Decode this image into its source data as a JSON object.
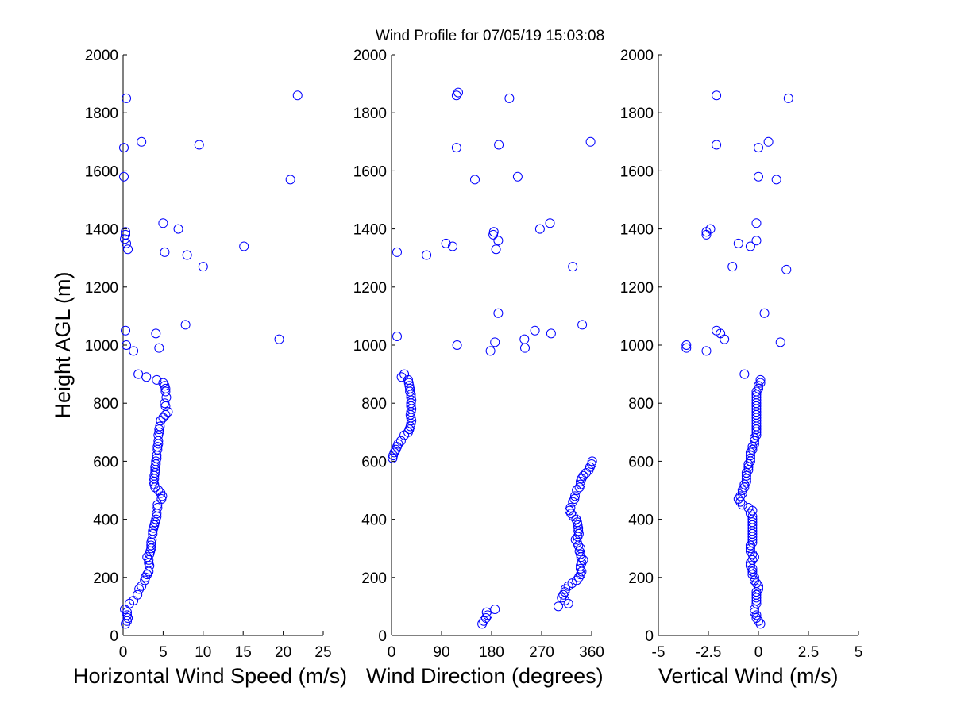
{
  "figure_title": "Wind Profile for  07/05/19 15:03:08",
  "colors": {
    "marker": "#0000ff",
    "axis": "#000000",
    "background": "#ffffff"
  },
  "chart_data": [
    {
      "type": "scatter",
      "marker": "open-circle",
      "xlabel": "Horizontal Wind Speed (m/s)",
      "ylabel": "Height AGL (m)",
      "xlim": [
        0,
        25
      ],
      "ylim": [
        0,
        2000
      ],
      "xticks": [
        "0",
        "5",
        "10",
        "15",
        "20",
        "25"
      ],
      "xtick_values": [
        0,
        5,
        10,
        15,
        20,
        25
      ],
      "yticks": [
        "0",
        "200",
        "400",
        "600",
        "800",
        "1000",
        "1200",
        "1400",
        "1600",
        "1800",
        "2000"
      ],
      "ytick_values": [
        0,
        200,
        400,
        600,
        800,
        1000,
        1200,
        1400,
        1600,
        1800,
        2000
      ],
      "grid": false,
      "points": [
        [
          0.3,
          40
        ],
        [
          0.5,
          50
        ],
        [
          0.6,
          60
        ],
        [
          0.5,
          70
        ],
        [
          0.5,
          80
        ],
        [
          0.2,
          90
        ],
        [
          0.8,
          110
        ],
        [
          1.3,
          120
        ],
        [
          1.8,
          140
        ],
        [
          2.0,
          160
        ],
        [
          2.3,
          170
        ],
        [
          2.7,
          190
        ],
        [
          2.8,
          200
        ],
        [
          3.0,
          210
        ],
        [
          3.2,
          220
        ],
        [
          3.3,
          240
        ],
        [
          3.2,
          250
        ],
        [
          3.2,
          260
        ],
        [
          3.0,
          270
        ],
        [
          3.3,
          280
        ],
        [
          3.4,
          290
        ],
        [
          3.5,
          300
        ],
        [
          3.5,
          310
        ],
        [
          3.5,
          320
        ],
        [
          3.6,
          330
        ],
        [
          3.7,
          350
        ],
        [
          3.7,
          360
        ],
        [
          3.8,
          370
        ],
        [
          3.9,
          380
        ],
        [
          4.0,
          390
        ],
        [
          4.1,
          400
        ],
        [
          4.2,
          410
        ],
        [
          4.2,
          420
        ],
        [
          4.3,
          440
        ],
        [
          4.3,
          450
        ],
        [
          4.8,
          470
        ],
        [
          4.9,
          480
        ],
        [
          4.7,
          490
        ],
        [
          4.4,
          500
        ],
        [
          4.0,
          510
        ],
        [
          3.9,
          520
        ],
        [
          3.8,
          530
        ],
        [
          3.9,
          540
        ],
        [
          3.9,
          550
        ],
        [
          4.0,
          560
        ],
        [
          4.0,
          570
        ],
        [
          4.0,
          580
        ],
        [
          4.1,
          590
        ],
        [
          4.1,
          600
        ],
        [
          4.2,
          610
        ],
        [
          4.2,
          620
        ],
        [
          4.3,
          640
        ],
        [
          4.3,
          650
        ],
        [
          4.4,
          660
        ],
        [
          4.4,
          670
        ],
        [
          4.4,
          690
        ],
        [
          4.5,
          700
        ],
        [
          4.5,
          710
        ],
        [
          4.6,
          720
        ],
        [
          4.7,
          740
        ],
        [
          5.0,
          750
        ],
        [
          5.3,
          760
        ],
        [
          5.6,
          770
        ],
        [
          5.3,
          790
        ],
        [
          5.2,
          800
        ],
        [
          5.4,
          820
        ],
        [
          5.3,
          840
        ],
        [
          5.3,
          850
        ],
        [
          5.2,
          860
        ],
        [
          5.0,
          870
        ],
        [
          4.2,
          880
        ],
        [
          2.9,
          890
        ],
        [
          1.9,
          900
        ],
        [
          1.3,
          980
        ],
        [
          4.5,
          990
        ],
        [
          0.4,
          1000
        ],
        [
          7.8,
          1070
        ],
        [
          19.5,
          1020
        ],
        [
          4.1,
          1040
        ],
        [
          0.3,
          1050
        ],
        [
          10.0,
          1270
        ],
        [
          5.2,
          1320
        ],
        [
          8.0,
          1310
        ],
        [
          0.6,
          1330
        ],
        [
          0.4,
          1350
        ],
        [
          0.2,
          1365
        ],
        [
          0.3,
          1380
        ],
        [
          0.3,
          1390
        ],
        [
          6.9,
          1400
        ],
        [
          5.0,
          1420
        ],
        [
          15.1,
          1340
        ],
        [
          0.1,
          1580
        ],
        [
          20.9,
          1570
        ],
        [
          0.1,
          1680
        ],
        [
          2.3,
          1700
        ],
        [
          9.5,
          1690
        ],
        [
          0.4,
          1850
        ],
        [
          21.8,
          1860
        ]
      ]
    },
    {
      "type": "scatter",
      "marker": "open-circle",
      "xlabel": "Wind Direction (degrees)",
      "ylabel": "",
      "xlim": [
        0,
        360
      ],
      "ylim": [
        0,
        2000
      ],
      "xticks": [
        "0",
        "90",
        "180",
        "270",
        "360"
      ],
      "xtick_values": [
        0,
        90,
        180,
        270,
        360
      ],
      "yticks": [
        "0",
        "200",
        "400",
        "600",
        "800",
        "1000",
        "1200",
        "1400",
        "1600",
        "1800",
        "2000"
      ],
      "ytick_values": [
        0,
        200,
        400,
        600,
        800,
        1000,
        1200,
        1400,
        1600,
        1800,
        2000
      ],
      "grid": false,
      "points": [
        [
          163,
          40
        ],
        [
          166,
          50
        ],
        [
          170,
          60
        ],
        [
          173,
          70
        ],
        [
          171,
          80
        ],
        [
          186,
          90
        ],
        [
          300,
          100
        ],
        [
          318,
          110
        ],
        [
          312,
          120
        ],
        [
          306,
          130
        ],
        [
          309,
          140
        ],
        [
          312,
          150
        ],
        [
          313,
          160
        ],
        [
          318,
          170
        ],
        [
          325,
          180
        ],
        [
          333,
          190
        ],
        [
          337,
          200
        ],
        [
          340,
          210
        ],
        [
          342,
          220
        ],
        [
          340,
          230
        ],
        [
          340,
          240
        ],
        [
          342,
          250
        ],
        [
          345,
          260
        ],
        [
          341,
          270
        ],
        [
          340,
          280
        ],
        [
          338,
          290
        ],
        [
          340,
          300
        ],
        [
          336,
          310
        ],
        [
          334,
          320
        ],
        [
          331,
          330
        ],
        [
          335,
          340
        ],
        [
          337,
          350
        ],
        [
          336,
          360
        ],
        [
          336,
          370
        ],
        [
          335,
          380
        ],
        [
          334,
          390
        ],
        [
          332,
          400
        ],
        [
          327,
          410
        ],
        [
          323,
          420
        ],
        [
          320,
          430
        ],
        [
          322,
          440
        ],
        [
          326,
          460
        ],
        [
          329,
          470
        ],
        [
          330,
          480
        ],
        [
          333,
          500
        ],
        [
          338,
          510
        ],
        [
          340,
          520
        ],
        [
          340,
          530
        ],
        [
          342,
          540
        ],
        [
          345,
          550
        ],
        [
          350,
          560
        ],
        [
          355,
          570
        ],
        [
          357,
          580
        ],
        [
          360,
          590
        ],
        [
          361,
          600
        ],
        [
          2,
          610
        ],
        [
          3,
          620
        ],
        [
          5,
          630
        ],
        [
          8,
          640
        ],
        [
          10,
          650
        ],
        [
          12,
          660
        ],
        [
          17,
          670
        ],
        [
          23,
          690
        ],
        [
          30,
          700
        ],
        [
          32,
          710
        ],
        [
          34,
          720
        ],
        [
          35,
          730
        ],
        [
          36,
          740
        ],
        [
          35,
          750
        ],
        [
          34,
          760
        ],
        [
          35,
          770
        ],
        [
          36,
          780
        ],
        [
          35,
          790
        ],
        [
          35,
          800
        ],
        [
          36,
          810
        ],
        [
          35,
          820
        ],
        [
          35,
          830
        ],
        [
          33,
          840
        ],
        [
          33,
          850
        ],
        [
          32,
          860
        ],
        [
          31,
          870
        ],
        [
          30,
          880
        ],
        [
          18,
          890
        ],
        [
          23,
          900
        ],
        [
          178,
          980
        ],
        [
          118,
          1000
        ],
        [
          186,
          1010
        ],
        [
          239,
          1020
        ],
        [
          240,
          990
        ],
        [
          10,
          1030
        ],
        [
          258,
          1050
        ],
        [
          287,
          1040
        ],
        [
          343,
          1070
        ],
        [
          192,
          1110
        ],
        [
          326,
          1270
        ],
        [
          63,
          1310
        ],
        [
          10,
          1320
        ],
        [
          188,
          1330
        ],
        [
          110,
          1340
        ],
        [
          98,
          1350
        ],
        [
          192,
          1360
        ],
        [
          183,
          1380
        ],
        [
          184,
          1390
        ],
        [
          267,
          1400
        ],
        [
          285,
          1420
        ],
        [
          150,
          1570
        ],
        [
          227,
          1580
        ],
        [
          117,
          1680
        ],
        [
          193,
          1690
        ],
        [
          358,
          1700
        ],
        [
          212,
          1850
        ],
        [
          117,
          1860
        ],
        [
          120,
          1870
        ]
      ]
    },
    {
      "type": "scatter",
      "marker": "open-circle",
      "xlabel": "Vertical Wind (m/s)",
      "ylabel": "",
      "xlim": [
        -5,
        5
      ],
      "ylim": [
        0,
        2000
      ],
      "xticks": [
        "-5",
        "-2.5",
        "0",
        "2.5",
        "5"
      ],
      "xtick_values": [
        -5,
        -2.5,
        0,
        2.5,
        5
      ],
      "yticks": [
        "0",
        "200",
        "400",
        "600",
        "800",
        "1000",
        "1200",
        "1400",
        "1600",
        "1800",
        "2000"
      ],
      "ytick_values": [
        0,
        200,
        400,
        600,
        800,
        1000,
        1200,
        1400,
        1600,
        1800,
        2000
      ],
      "grid": false,
      "points": [
        [
          0.1,
          40
        ],
        [
          0.0,
          50
        ],
        [
          -0.1,
          60
        ],
        [
          -0.1,
          70
        ],
        [
          -0.2,
          80
        ],
        [
          -0.2,
          90
        ],
        [
          -0.1,
          110
        ],
        [
          -0.1,
          120
        ],
        [
          -0.1,
          130
        ],
        [
          -0.1,
          140
        ],
        [
          -0.1,
          150
        ],
        [
          0.0,
          160
        ],
        [
          0.0,
          170
        ],
        [
          -0.1,
          180
        ],
        [
          -0.2,
          190
        ],
        [
          -0.2,
          200
        ],
        [
          -0.3,
          210
        ],
        [
          -0.3,
          220
        ],
        [
          -0.3,
          230
        ],
        [
          -0.4,
          240
        ],
        [
          -0.4,
          250
        ],
        [
          -0.3,
          260
        ],
        [
          -0.2,
          270
        ],
        [
          -0.3,
          280
        ],
        [
          -0.4,
          290
        ],
        [
          -0.4,
          300
        ],
        [
          -0.4,
          310
        ],
        [
          -0.3,
          320
        ],
        [
          -0.3,
          330
        ],
        [
          -0.3,
          340
        ],
        [
          -0.3,
          350
        ],
        [
          -0.3,
          360
        ],
        [
          -0.3,
          370
        ],
        [
          -0.3,
          380
        ],
        [
          -0.3,
          390
        ],
        [
          -0.3,
          400
        ],
        [
          -0.3,
          410
        ],
        [
          -0.4,
          420
        ],
        [
          -0.3,
          430
        ],
        [
          -0.5,
          440
        ],
        [
          -0.8,
          450
        ],
        [
          -0.9,
          460
        ],
        [
          -1.0,
          470
        ],
        [
          -0.9,
          480
        ],
        [
          -0.8,
          490
        ],
        [
          -0.8,
          500
        ],
        [
          -0.7,
          510
        ],
        [
          -0.7,
          520
        ],
        [
          -0.6,
          530
        ],
        [
          -0.6,
          540
        ],
        [
          -0.6,
          550
        ],
        [
          -0.6,
          560
        ],
        [
          -0.5,
          570
        ],
        [
          -0.5,
          580
        ],
        [
          -0.5,
          590
        ],
        [
          -0.4,
          600
        ],
        [
          -0.4,
          610
        ],
        [
          -0.4,
          620
        ],
        [
          -0.4,
          630
        ],
        [
          -0.3,
          640
        ],
        [
          -0.3,
          650
        ],
        [
          -0.2,
          660
        ],
        [
          -0.2,
          670
        ],
        [
          -0.2,
          680
        ],
        [
          -0.1,
          690
        ],
        [
          -0.1,
          700
        ],
        [
          -0.1,
          710
        ],
        [
          -0.1,
          720
        ],
        [
          -0.1,
          730
        ],
        [
          -0.1,
          740
        ],
        [
          -0.1,
          750
        ],
        [
          -0.1,
          760
        ],
        [
          -0.1,
          770
        ],
        [
          -0.1,
          780
        ],
        [
          -0.1,
          790
        ],
        [
          -0.1,
          800
        ],
        [
          -0.1,
          810
        ],
        [
          -0.1,
          820
        ],
        [
          -0.1,
          830
        ],
        [
          -0.1,
          840
        ],
        [
          0.0,
          850
        ],
        [
          0.0,
          860
        ],
        [
          0.1,
          870
        ],
        [
          0.1,
          880
        ],
        [
          -0.7,
          900
        ],
        [
          -3.6,
          1000
        ],
        [
          -3.6,
          990
        ],
        [
          -2.6,
          980
        ],
        [
          -2.1,
          1050
        ],
        [
          -1.9,
          1040
        ],
        [
          -1.7,
          1020
        ],
        [
          1.1,
          1010
        ],
        [
          0.3,
          1110
        ],
        [
          1.4,
          1260
        ],
        [
          -1.3,
          1270
        ],
        [
          -0.4,
          1340
        ],
        [
          -1.0,
          1350
        ],
        [
          -0.1,
          1360
        ],
        [
          -2.6,
          1380
        ],
        [
          -2.6,
          1390
        ],
        [
          -2.4,
          1400
        ],
        [
          -0.1,
          1420
        ],
        [
          0.9,
          1570
        ],
        [
          0.0,
          1580
        ],
        [
          0.0,
          1680
        ],
        [
          0.5,
          1700
        ],
        [
          -2.1,
          1690
        ],
        [
          -2.1,
          1860
        ],
        [
          1.5,
          1850
        ]
      ]
    }
  ]
}
